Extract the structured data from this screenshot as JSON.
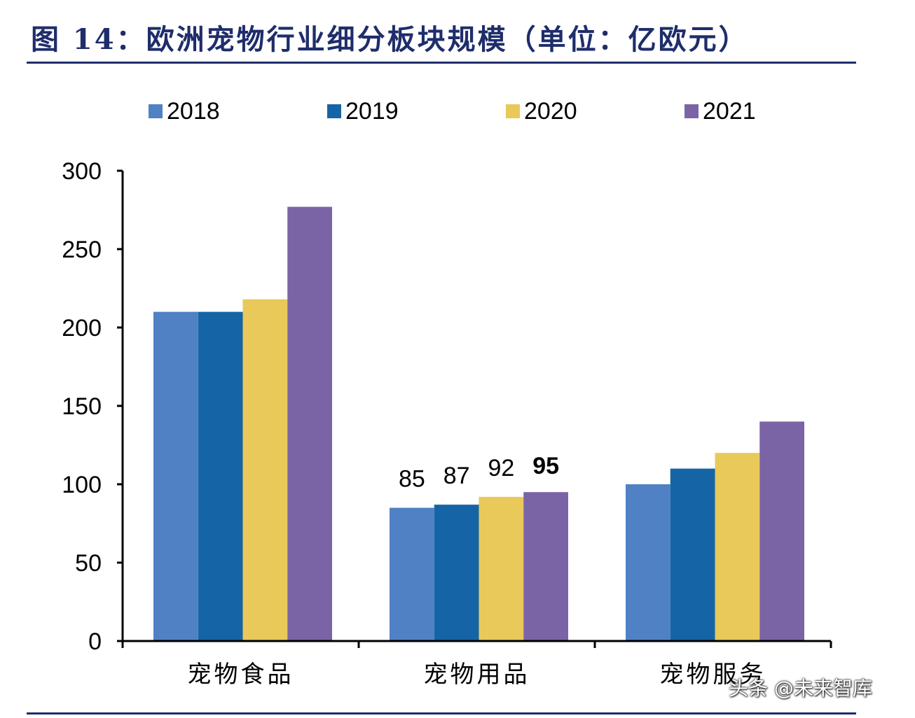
{
  "title": "图 14：欧洲宠物行业细分板块规模（单位：亿欧元）",
  "watermark": "头条 @未来智库",
  "colors": {
    "axis": "#000000",
    "title": "#1f2d6b"
  },
  "chart_data": {
    "type": "bar",
    "categories": [
      "宠物食品",
      "宠物用品",
      "宠物服务"
    ],
    "series": [
      {
        "name": "2018",
        "color": "#4f81c4",
        "values": [
          210,
          85,
          100
        ]
      },
      {
        "name": "2019",
        "color": "#1565a6",
        "values": [
          210,
          87,
          110
        ]
      },
      {
        "name": "2020",
        "color": "#e8c95a",
        "values": [
          218,
          92,
          120
        ]
      },
      {
        "name": "2021",
        "color": "#7b64a6",
        "values": [
          277,
          95,
          140
        ]
      }
    ],
    "data_labels": [
      {
        "category": "宠物用品",
        "series": "2018",
        "text": "85",
        "bold": false
      },
      {
        "category": "宠物用品",
        "series": "2019",
        "text": "87",
        "bold": false
      },
      {
        "category": "宠物用品",
        "series": "2020",
        "text": "92",
        "bold": false
      },
      {
        "category": "宠物用品",
        "series": "2021",
        "text": "95",
        "bold": true
      }
    ],
    "yticks": [
      0,
      50,
      100,
      150,
      200,
      250,
      300
    ],
    "ylim": [
      0,
      300
    ],
    "legend_position": "top",
    "grid": false
  }
}
